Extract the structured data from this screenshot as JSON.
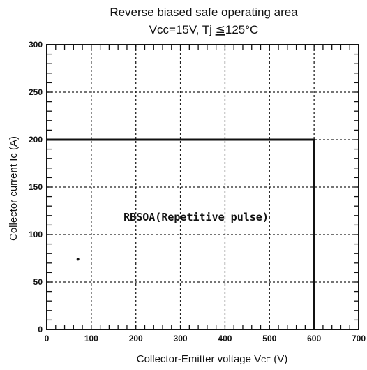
{
  "chart_data": {
    "type": "line",
    "title": "Reverse biased safe operating area",
    "subtitle_prefix": "Vcc=15V, Tj ",
    "subtitle_op": "≦",
    "subtitle_suffix": "125°C",
    "xlabel_main": "Collector-Emitter voltage  V",
    "xlabel_sub": "CE",
    "xlabel_unit": " (V)",
    "ylabel": "Collector current  Ic  (A)",
    "xlim": [
      0,
      700
    ],
    "ylim": [
      0,
      300
    ],
    "x_ticks": [
      0,
      100,
      200,
      300,
      400,
      500,
      600,
      700
    ],
    "y_ticks": [
      0,
      50,
      100,
      150,
      200,
      250,
      300
    ],
    "grid": true,
    "series": [
      {
        "x": [
          0,
          600,
          600
        ],
        "y": [
          200,
          200,
          0
        ]
      }
    ],
    "annotation": "RBSOA(Repetitive pulse)",
    "marker_point": {
      "x": 70,
      "y": 74
    }
  }
}
